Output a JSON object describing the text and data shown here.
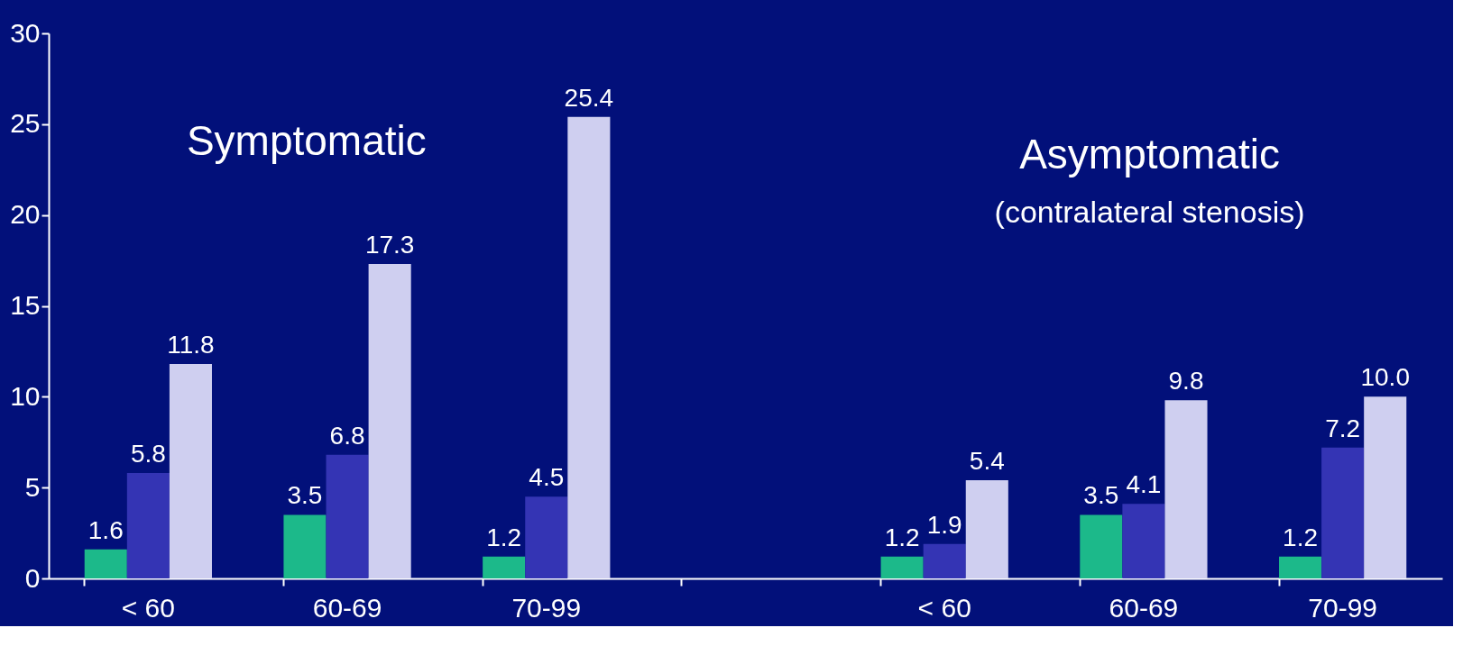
{
  "chart_data": {
    "type": "bar",
    "categories": [
      "< 60",
      "60-69",
      "70-99",
      null,
      "< 60",
      "60-69",
      "70-99"
    ],
    "series": [
      {
        "color": "#1cb98a",
        "values": [
          1.6,
          3.5,
          1.2,
          null,
          1.2,
          3.5,
          1.2
        ],
        "value_labels": [
          "1.6",
          "3.5",
          "1.2",
          null,
          "1.2",
          "3.5",
          "1.2"
        ]
      },
      {
        "color": "#3434b4",
        "values": [
          5.8,
          6.8,
          4.5,
          null,
          1.9,
          4.1,
          7.2
        ],
        "value_labels": [
          "5.8",
          "6.8",
          "4.5",
          null,
          "1.9",
          "4.1",
          "7.2"
        ]
      },
      {
        "color": "#cfcff0",
        "values": [
          11.8,
          17.3,
          25.4,
          null,
          5.4,
          9.8,
          10.0
        ],
        "value_labels": [
          "11.8",
          "17.3",
          "25.4",
          null,
          "5.4",
          "9.8",
          "10.0"
        ]
      }
    ],
    "ylim": [
      0,
      30
    ],
    "yticks": [
      0,
      5,
      10,
      15,
      20,
      25,
      30
    ],
    "grid": false,
    "legend": false,
    "annotations": [
      "Symptomatic",
      "Asymptomatic",
      "(contralateral stenosis)"
    ]
  }
}
